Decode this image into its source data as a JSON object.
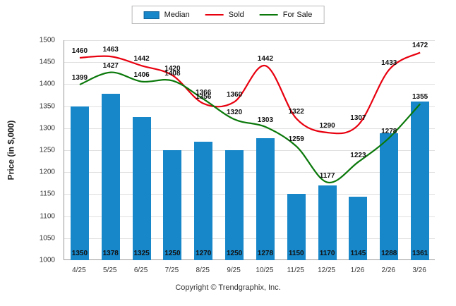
{
  "footer": "Copyright © Trendgraphix, Inc.",
  "chart_data": {
    "type": "bar",
    "categories": [
      "4/25",
      "5/25",
      "6/25",
      "7/25",
      "8/25",
      "9/25",
      "10/25",
      "11/25",
      "12/25",
      "1/26",
      "2/26",
      "3/26"
    ],
    "series": [
      {
        "name": "Median",
        "type": "bar",
        "color": "#1787c9",
        "values": [
          1350,
          1378,
          1325,
          1250,
          1270,
          1250,
          1278,
          1150,
          1170,
          1145,
          1288,
          1361
        ]
      },
      {
        "name": "Sold",
        "type": "line",
        "color": "#e8000f",
        "values": [
          1460,
          1463,
          1442,
          1420,
          1356,
          1360,
          1442,
          1322,
          1290,
          1307,
          1433,
          1472
        ]
      },
      {
        "name": "For Sale",
        "type": "line",
        "color": "#0a780a",
        "values": [
          1399,
          1427,
          1406,
          1408,
          1366,
          1320,
          1303,
          1259,
          1177,
          1223,
          1278,
          1355
        ]
      }
    ],
    "title": "",
    "xlabel": "",
    "ylabel": "Price (in $,000)",
    "ylim": [
      1000,
      1500
    ],
    "ytick_step": 50,
    "grid": true,
    "legend_position": "top"
  }
}
